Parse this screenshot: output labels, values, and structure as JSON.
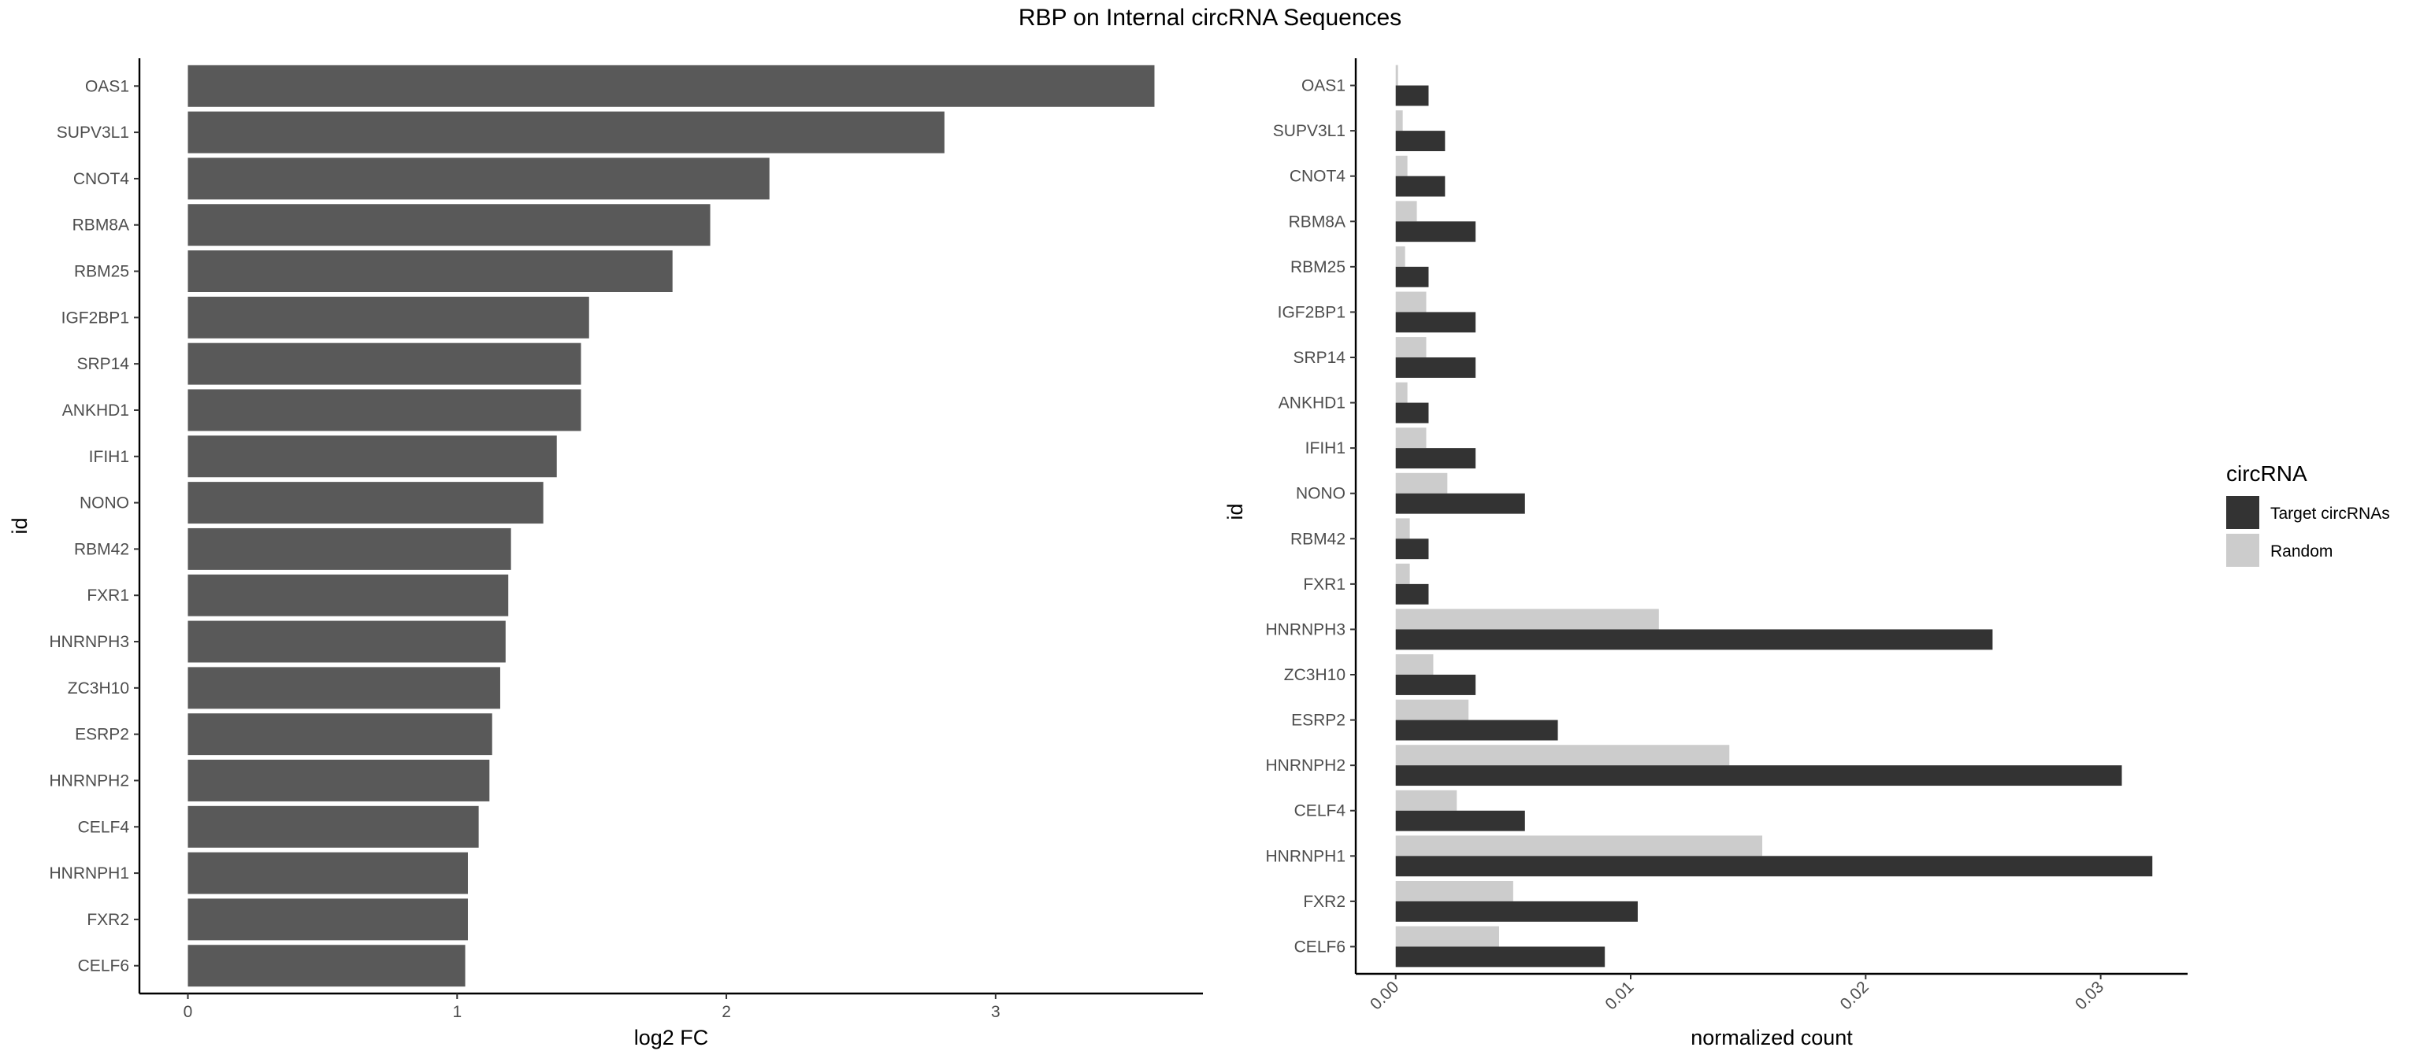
{
  "title": "RBP on Internal circRNA Sequences",
  "chart_data": [
    {
      "type": "bar",
      "orientation": "horizontal",
      "categories": [
        "OAS1",
        "SUPV3L1",
        "CNOT4",
        "RBM8A",
        "RBM25",
        "IGF2BP1",
        "SRP14",
        "ANKHD1",
        "IFIH1",
        "NONO",
        "RBM42",
        "FXR1",
        "HNRNPH3",
        "ZC3H10",
        "ESRP2",
        "HNRNPH2",
        "CELF4",
        "HNRNPH1",
        "FXR2",
        "CELF6"
      ],
      "values": [
        3.59,
        2.81,
        2.16,
        1.94,
        1.8,
        1.49,
        1.46,
        1.46,
        1.37,
        1.32,
        1.2,
        1.19,
        1.18,
        1.16,
        1.13,
        1.12,
        1.08,
        1.04,
        1.04,
        1.03
      ],
      "xlabel": "log2 FC",
      "ylabel": "id",
      "xticks": [
        0,
        1,
        2,
        3
      ],
      "xlim": [
        -0.18,
        3.77
      ],
      "bar_color": "#595959",
      "grid": false
    },
    {
      "type": "bar",
      "orientation": "horizontal",
      "grouped": true,
      "categories": [
        "OAS1",
        "SUPV3L1",
        "CNOT4",
        "RBM8A",
        "RBM25",
        "IGF2BP1",
        "SRP14",
        "ANKHD1",
        "IFIH1",
        "NONO",
        "RBM42",
        "FXR1",
        "HNRNPH3",
        "ZC3H10",
        "ESRP2",
        "HNRNPH2",
        "CELF4",
        "HNRNPH1",
        "FXR2",
        "CELF6"
      ],
      "series": [
        {
          "name": "Target circRNAs",
          "color": "#333333",
          "values": [
            0.0014,
            0.0021,
            0.0021,
            0.0034,
            0.0014,
            0.0034,
            0.0034,
            0.0014,
            0.0034,
            0.0055,
            0.0014,
            0.0014,
            0.0254,
            0.0034,
            0.0069,
            0.0309,
            0.0055,
            0.0322,
            0.0103,
            0.0089
          ]
        },
        {
          "name": "Random",
          "color": "#cccccc",
          "values": [
            0.0001,
            0.0003,
            0.0005,
            0.0009,
            0.0004,
            0.0013,
            0.0013,
            0.0005,
            0.0013,
            0.0022,
            0.0006,
            0.0006,
            0.0112,
            0.0016,
            0.0031,
            0.0142,
            0.0026,
            0.0156,
            0.005,
            0.0044
          ]
        }
      ],
      "xlabel": "normalized count",
      "ylabel": "id",
      "xticks": [
        0.0,
        0.01,
        0.02,
        0.03
      ],
      "xtick_labels": [
        "0.00",
        "0.01",
        "0.02",
        "0.03"
      ],
      "xlim": [
        -0.0017,
        0.0337
      ],
      "legend": {
        "title": "circRNA",
        "position": "right"
      },
      "grid": false
    }
  ]
}
